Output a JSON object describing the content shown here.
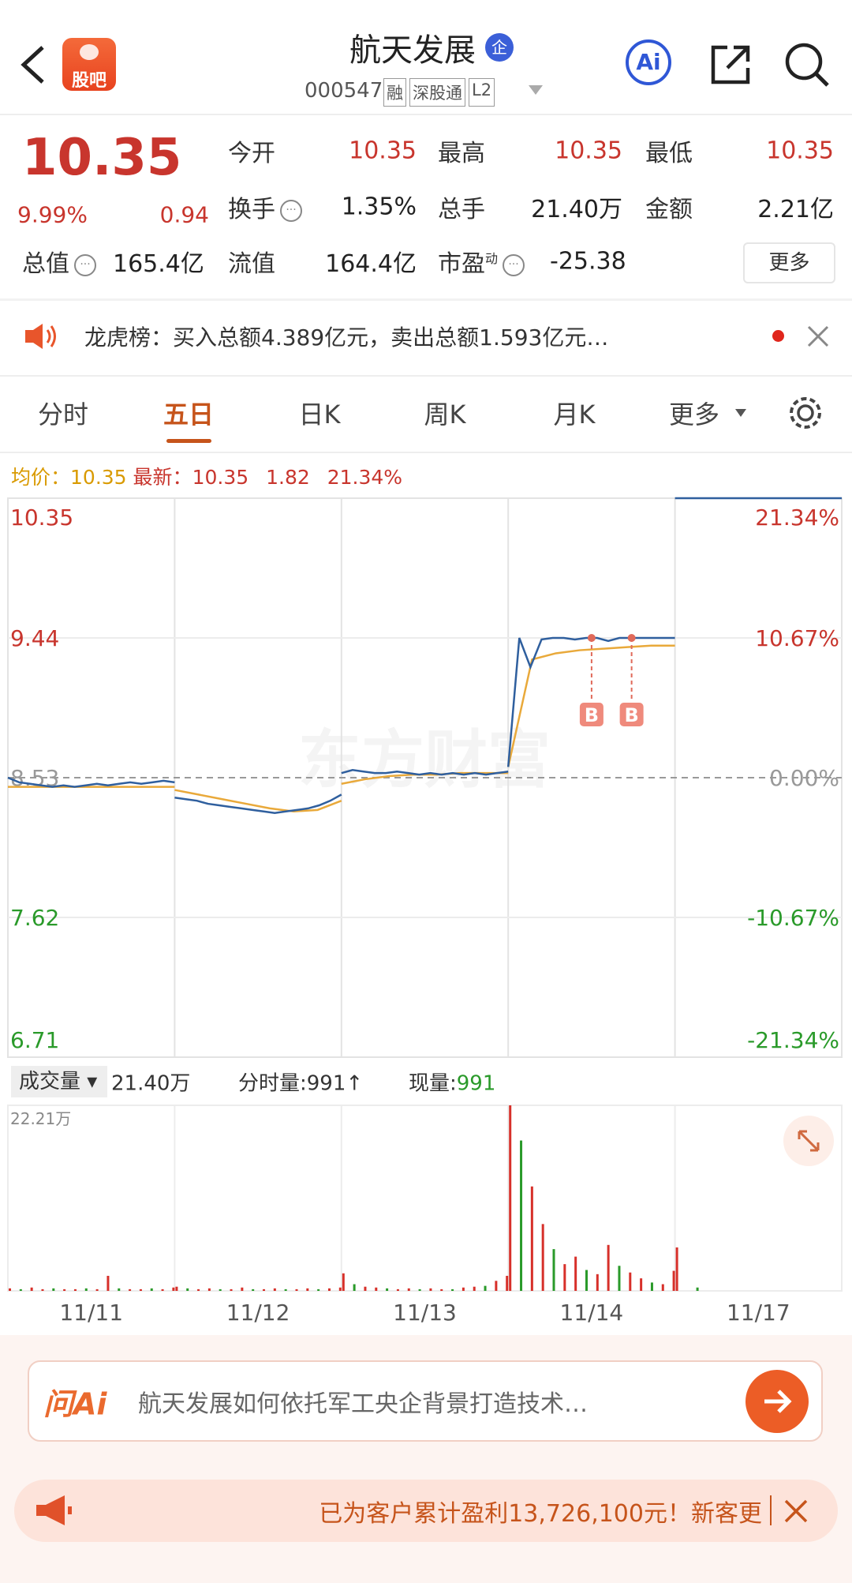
{
  "header": {
    "logo": "股吧",
    "title": "航天发展",
    "badge": "企",
    "code": "000547",
    "tags": [
      "融",
      "深股通",
      "L2"
    ],
    "ai": "Ai"
  },
  "quote": {
    "price": "10.35",
    "change_pct": "9.99%",
    "change": "0.94",
    "fields": [
      {
        "label": "今开",
        "value": "10.35"
      },
      {
        "label": "最高",
        "value": "10.35"
      },
      {
        "label": "最低",
        "value": "10.35"
      },
      {
        "label": "换手",
        "value": "1.35%"
      },
      {
        "label": "总手",
        "value": "21.40万"
      },
      {
        "label": "金额",
        "value": "2.21亿"
      },
      {
        "label": "总值",
        "value": "165.4亿"
      },
      {
        "label": "流值",
        "value": "164.4亿"
      },
      {
        "label": "市盈",
        "sup": "动",
        "value": "-25.38"
      }
    ],
    "more": "更多"
  },
  "notice": "龙虎榜：买入总额4.389亿元，卖出总额1.593亿元…",
  "tabs": [
    "分时",
    "五日",
    "日K",
    "周K",
    "月K",
    "更多"
  ],
  "info": {
    "avg_label": "均价：",
    "avg": "10.35",
    "last_label": "最新：",
    "last": "10.35",
    "change": "1.82",
    "change_pct": "21.34%"
  },
  "chart": {
    "watermark": "东方财富",
    "price_ticks": [
      10.35,
      9.44,
      8.53,
      7.62,
      6.71
    ],
    "pct_ticks": [
      "21.34%",
      "10.67%",
      "0.00%",
      "-10.67%",
      "-21.34%"
    ],
    "price_days": [
      [
        8.53,
        8.5,
        8.49,
        8.48,
        8.47,
        8.48,
        8.47,
        8.48,
        8.49,
        8.48,
        8.49,
        8.5,
        8.49,
        8.5,
        8.51,
        8.5
      ],
      [
        8.4,
        8.39,
        8.38,
        8.36,
        8.35,
        8.34,
        8.33,
        8.32,
        8.31,
        8.3,
        8.31,
        8.32,
        8.33,
        8.35,
        8.38,
        8.42
      ],
      [
        8.56,
        8.58,
        8.57,
        8.56,
        8.56,
        8.57,
        8.56,
        8.55,
        8.56,
        8.55,
        8.56,
        8.55,
        8.56,
        8.55,
        8.56,
        8.57
      ],
      [
        8.6,
        9.44,
        9.25,
        9.43,
        9.44,
        9.44,
        9.43,
        9.44,
        9.44,
        9.42,
        9.44,
        9.44,
        9.44,
        9.44,
        9.44,
        9.44
      ],
      [
        10.35,
        10.35
      ]
    ],
    "avg_days": [
      [
        8.47,
        8.47,
        8.47,
        8.47,
        8.47,
        8.47,
        8.47,
        8.47
      ],
      [
        8.45,
        8.42,
        8.39,
        8.36,
        8.33,
        8.31,
        8.32,
        8.38
      ],
      [
        8.49,
        8.52,
        8.54,
        8.55,
        8.55,
        8.56,
        8.56,
        8.56
      ],
      [
        8.6,
        9.3,
        9.34,
        9.36,
        9.37,
        9.38,
        9.39,
        9.39
      ]
    ],
    "trade_marks": [
      "B",
      "B"
    ],
    "volume_label": "成交量",
    "volume_total": "21.40万",
    "minute_volume_label": "分时量:",
    "minute_volume": "991",
    "current_volume_label": "现量:",
    "current_volume": "991",
    "volume_max": {
      "value": 22.21,
      "label": "22.21万"
    },
    "volume_days": [
      [
        0.3,
        0.2,
        0.4,
        0.2,
        0.3,
        0.2,
        0.2,
        0.3,
        0.2,
        1.8,
        0.3,
        0.2,
        0.2,
        0.3,
        0.2,
        0.4
      ],
      [
        0.5,
        0.3,
        0.2,
        0.3,
        0.2,
        0.2,
        0.4,
        0.2,
        0.2,
        0.3,
        0.2,
        0.2,
        0.3,
        0.2,
        0.3,
        0.4
      ],
      [
        2.1,
        0.8,
        0.5,
        0.4,
        0.3,
        0.2,
        0.3,
        0.2,
        0.3,
        0.2,
        0.2,
        0.4,
        0.5,
        0.6,
        1.2,
        1.8
      ],
      [
        22.21,
        18.0,
        12.5,
        8.0,
        5.0,
        3.2,
        4.1,
        2.5,
        2.0,
        5.5,
        3.0,
        2.2,
        1.5,
        1.0,
        0.8,
        2.4
      ],
      [
        5.2,
        0.4
      ]
    ],
    "dates": [
      "11/11",
      "11/12",
      "11/13",
      "11/14",
      "11/17"
    ]
  },
  "ask": {
    "logo": "问Ai",
    "text": "航天发展如何依托军工央企背景打造技术…"
  },
  "banner": "已为客户累计盈利13,726,100元！新客更"
}
